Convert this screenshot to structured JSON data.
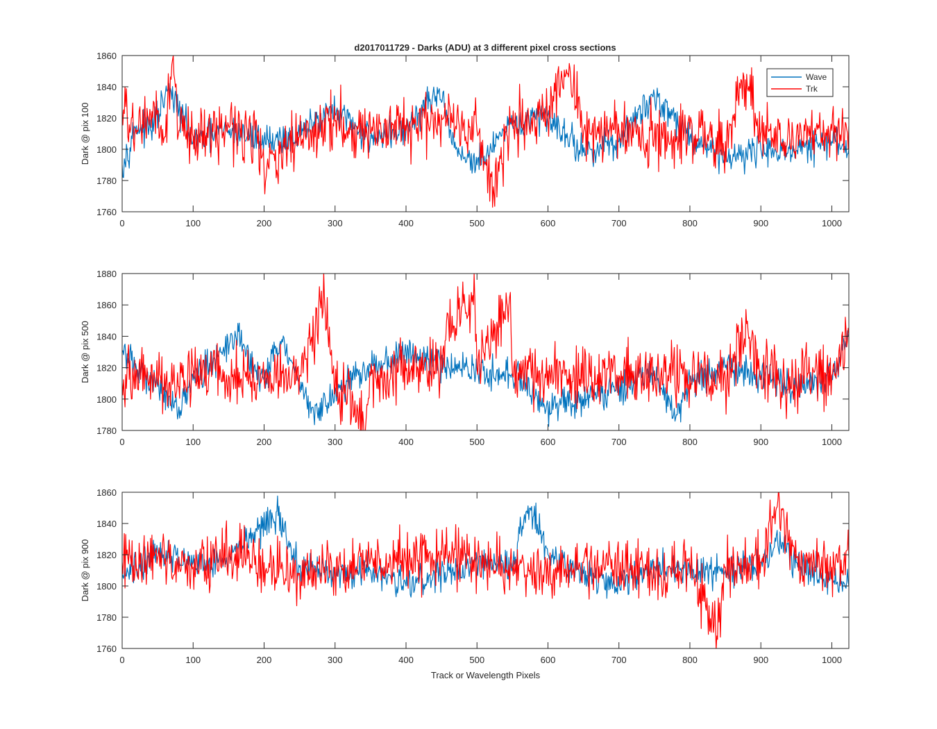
{
  "figure": {
    "title": "d2017011729 - Darks (ADU) at 3 different pixel cross sections"
  },
  "colors": {
    "wave": "#0072BD",
    "trk": "#FF0000",
    "axis": "#262626"
  },
  "chart_data": [
    {
      "type": "line",
      "ylabel": "Dark @ pix 100",
      "xlabel": "",
      "xlim": [
        0,
        1024
      ],
      "ylim": [
        1760,
        1860
      ],
      "xticks": [
        "0",
        "100",
        "200",
        "300",
        "400",
        "500",
        "600",
        "700",
        "800",
        "900",
        "1000"
      ],
      "yticks": [
        "1760",
        "1780",
        "1800",
        "1820",
        "1840",
        "1860"
      ],
      "legend": {
        "placement": "top-right",
        "entries": [
          "Wave",
          "Trk"
        ]
      },
      "series": [
        {
          "name": "Wave",
          "x": [
            0,
            20,
            40,
            60,
            65,
            80,
            100,
            150,
            200,
            250,
            290,
            300,
            350,
            400,
            440,
            450,
            470,
            500,
            520,
            550,
            600,
            650,
            700,
            750,
            800,
            850,
            900,
            950,
            1000,
            1024
          ],
          "values": [
            1790,
            1815,
            1812,
            1832,
            1838,
            1825,
            1805,
            1812,
            1806,
            1808,
            1825,
            1823,
            1808,
            1812,
            1835,
            1830,
            1800,
            1790,
            1800,
            1815,
            1822,
            1798,
            1805,
            1835,
            1808,
            1795,
            1800,
            1799,
            1805,
            1800
          ]
        },
        {
          "name": "Trk",
          "x": [
            0,
            20,
            40,
            60,
            72,
            80,
            100,
            150,
            190,
            200,
            250,
            300,
            350,
            400,
            450,
            500,
            523,
            550,
            600,
            630,
            650,
            700,
            750,
            800,
            850,
            880,
            900,
            950,
            1000,
            1024
          ],
          "values": [
            1825,
            1810,
            1822,
            1808,
            1860,
            1812,
            1808,
            1815,
            1810,
            1785,
            1808,
            1818,
            1810,
            1812,
            1822,
            1812,
            1776,
            1815,
            1818,
            1855,
            1810,
            1812,
            1808,
            1813,
            1805,
            1848,
            1810,
            1808,
            1812,
            1815
          ]
        }
      ]
    },
    {
      "type": "line",
      "ylabel": "Dark @ pix 500",
      "xlabel": "",
      "xlim": [
        0,
        1024
      ],
      "ylim": [
        1780,
        1880
      ],
      "xticks": [
        "0",
        "100",
        "200",
        "300",
        "400",
        "500",
        "600",
        "700",
        "800",
        "900",
        "1000"
      ],
      "yticks": [
        "1780",
        "1800",
        "1820",
        "1840",
        "1860",
        "1880"
      ],
      "series": [
        {
          "name": "Wave",
          "x": [
            0,
            20,
            50,
            80,
            100,
            140,
            160,
            200,
            225,
            250,
            270,
            300,
            350,
            400,
            450,
            500,
            550,
            600,
            650,
            700,
            750,
            780,
            800,
            850,
            900,
            950,
            1000,
            1024
          ],
          "values": [
            1830,
            1820,
            1808,
            1795,
            1812,
            1830,
            1840,
            1812,
            1838,
            1808,
            1790,
            1805,
            1820,
            1830,
            1822,
            1818,
            1815,
            1795,
            1800,
            1808,
            1818,
            1788,
            1812,
            1820,
            1815,
            1808,
            1815,
            1840
          ]
        },
        {
          "name": "Trk",
          "x": [
            0,
            20,
            50,
            80,
            100,
            150,
            200,
            250,
            285,
            300,
            343,
            350,
            400,
            450,
            460,
            497,
            500,
            547,
            550,
            600,
            650,
            700,
            750,
            800,
            850,
            880,
            900,
            950,
            1000,
            1024
          ],
          "values": [
            1810,
            1818,
            1812,
            1808,
            1820,
            1815,
            1812,
            1815,
            1865,
            1808,
            1782,
            1815,
            1818,
            1825,
            1850,
            1863,
            1820,
            1868,
            1815,
            1818,
            1812,
            1815,
            1818,
            1815,
            1812,
            1848,
            1815,
            1812,
            1815,
            1842
          ]
        }
      ]
    },
    {
      "type": "line",
      "ylabel": "Dark @ pix 900",
      "xlabel": "Track or Wavelength Pixels",
      "xlim": [
        0,
        1024
      ],
      "ylim": [
        1760,
        1860
      ],
      "xticks": [
        "0",
        "100",
        "200",
        "300",
        "400",
        "500",
        "600",
        "700",
        "800",
        "900",
        "1000"
      ],
      "yticks": [
        "1760",
        "1780",
        "1800",
        "1820",
        "1840",
        "1860"
      ],
      "series": [
        {
          "name": "Wave",
          "x": [
            0,
            20,
            50,
            100,
            150,
            190,
            220,
            250,
            300,
            350,
            400,
            450,
            500,
            550,
            570,
            580,
            600,
            650,
            700,
            750,
            800,
            850,
            900,
            930,
            950,
            1000,
            1024
          ],
          "values": [
            1805,
            1812,
            1822,
            1815,
            1818,
            1835,
            1845,
            1812,
            1808,
            1810,
            1800,
            1810,
            1815,
            1812,
            1848,
            1845,
            1820,
            1808,
            1800,
            1812,
            1808,
            1810,
            1815,
            1828,
            1815,
            1805,
            1800
          ]
        },
        {
          "name": "Trk",
          "x": [
            0,
            20,
            50,
            100,
            150,
            200,
            250,
            300,
            350,
            400,
            450,
            500,
            550,
            600,
            650,
            700,
            750,
            800,
            838,
            850,
            900,
            922,
            950,
            1000,
            1024
          ],
          "values": [
            1815,
            1810,
            1818,
            1812,
            1820,
            1815,
            1808,
            1812,
            1818,
            1815,
            1820,
            1815,
            1812,
            1810,
            1815,
            1812,
            1808,
            1812,
            1768,
            1812,
            1815,
            1850,
            1818,
            1812,
            1818
          ]
        }
      ]
    }
  ]
}
